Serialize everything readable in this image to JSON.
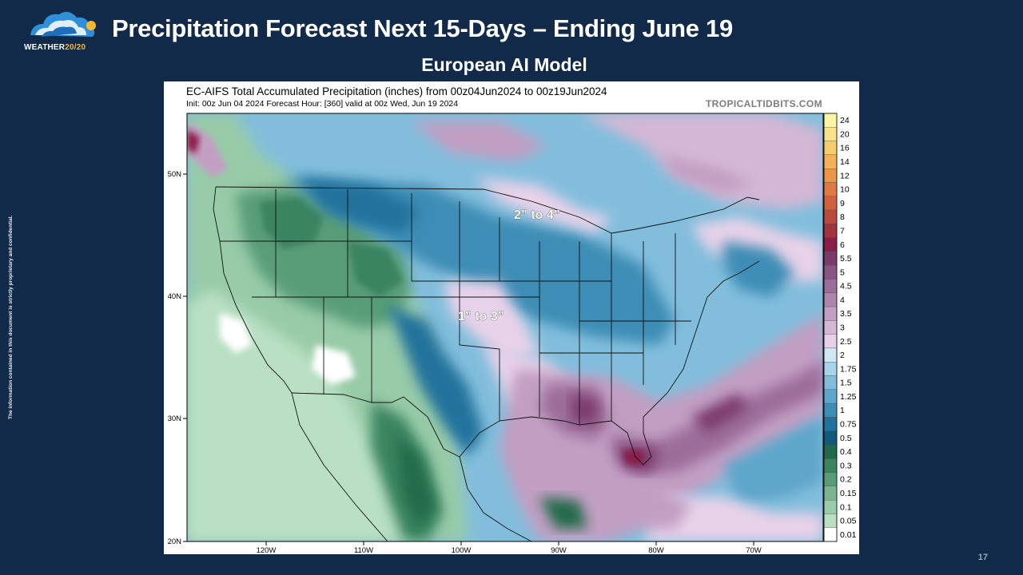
{
  "slide": {
    "title": "Precipitation Forecast Next 15-Days – Ending June 19",
    "subtitle": "European AI Model",
    "side_note": "The information contained in this document is strictly proprietary and confidential.",
    "page_number": "17",
    "logo": {
      "text_main": "WEATHER",
      "text_accent": "20/20",
      "accent_color": "#f5b82e"
    }
  },
  "map": {
    "title": "EC-AIFS Total Accumulated Precipitation (inches) from 00z04Jun2024 to 00z19Jun2024",
    "init_line": "Init: 00z Jun 04 2024   Forecast Hour: [360]   valid at 00z Wed, Jun 19 2024",
    "watermark": "TROPICALTIDBITS.COM",
    "lat_labels": [
      "50N",
      "40N",
      "30N",
      "20N"
    ],
    "lon_labels": [
      "120W",
      "110W",
      "100W",
      "90W",
      "80W",
      "70W"
    ],
    "annotations": [
      {
        "id": "north",
        "text": "2” to 4”"
      },
      {
        "id": "central",
        "text": "1” to 3”"
      }
    ],
    "legend": [
      {
        "label": "24",
        "color": "#fcf5a8"
      },
      {
        "label": "20",
        "color": "#f9e38a"
      },
      {
        "label": "16",
        "color": "#f6cd6d"
      },
      {
        "label": "14",
        "color": "#f2b257"
      },
      {
        "label": "12",
        "color": "#ec9648"
      },
      {
        "label": "10",
        "color": "#e07a44"
      },
      {
        "label": "9",
        "color": "#d0603f"
      },
      {
        "label": "8",
        "color": "#bb4a3e"
      },
      {
        "label": "7",
        "color": "#a2333f"
      },
      {
        "label": "6",
        "color": "#8a1d4a"
      },
      {
        "label": "5.5",
        "color": "#7b3a6c"
      },
      {
        "label": "5",
        "color": "#8a5585"
      },
      {
        "label": "4.5",
        "color": "#9c6d9a"
      },
      {
        "label": "4",
        "color": "#ad86ae"
      },
      {
        "label": "3.5",
        "color": "#c29fc3"
      },
      {
        "label": "3",
        "color": "#d4b8d6"
      },
      {
        "label": "2.5",
        "color": "#e8d2e9"
      },
      {
        "label": "2",
        "color": "#cfe8f5"
      },
      {
        "label": "1.75",
        "color": "#a8d4ea"
      },
      {
        "label": "1.5",
        "color": "#82bedc"
      },
      {
        "label": "1.25",
        "color": "#5ea6cb"
      },
      {
        "label": "1",
        "color": "#3e8db6"
      },
      {
        "label": "0.75",
        "color": "#22729c"
      },
      {
        "label": "0.5",
        "color": "#13597c"
      },
      {
        "label": "0.4",
        "color": "#206a4a"
      },
      {
        "label": "0.3",
        "color": "#3a8460"
      },
      {
        "label": "0.2",
        "color": "#589d78"
      },
      {
        "label": "0.15",
        "color": "#78b590"
      },
      {
        "label": "0.1",
        "color": "#98cba8"
      },
      {
        "label": "0.05",
        "color": "#b9e0c3"
      },
      {
        "label": "0.01",
        "color": "#ffffff"
      }
    ]
  }
}
